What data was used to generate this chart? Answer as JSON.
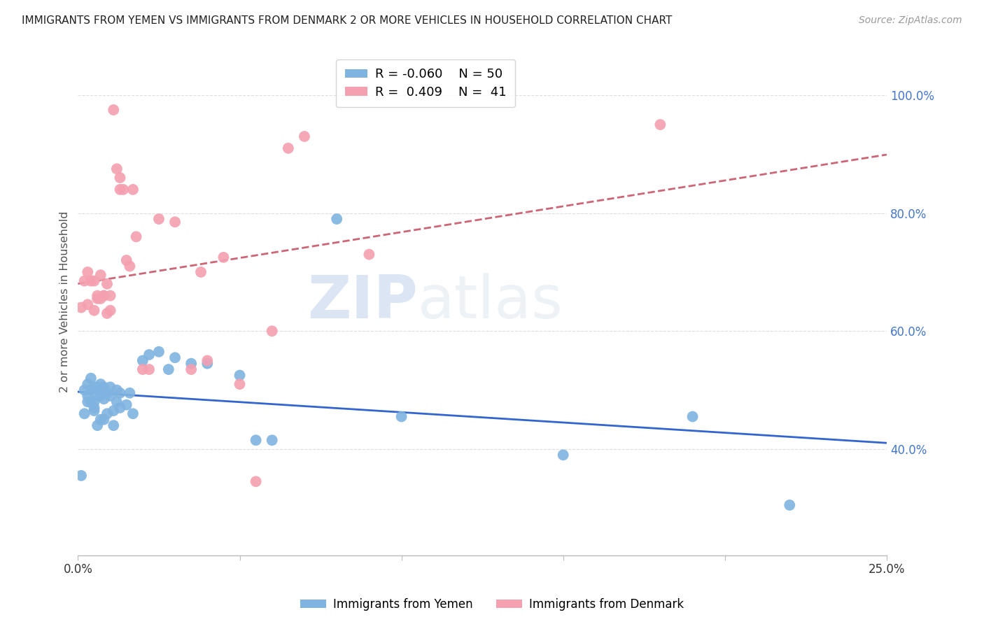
{
  "title": "IMMIGRANTS FROM YEMEN VS IMMIGRANTS FROM DENMARK 2 OR MORE VEHICLES IN HOUSEHOLD CORRELATION CHART",
  "source": "Source: ZipAtlas.com",
  "ylabel": "2 or more Vehicles in Household",
  "yemen_color": "#7fb3e0",
  "denmark_color": "#f4a0b0",
  "yemen_line_color": "#3366cc",
  "denmark_line_color": "#cc6677",
  "background_color": "#ffffff",
  "grid_color": "#dddddd",
  "watermark_zip": "ZIP",
  "watermark_atlas": "atlas",
  "legend_R_yemen": "-0.060",
  "legend_N_yemen": "50",
  "legend_R_denmark": "0.409",
  "legend_N_denmark": "41",
  "xlim": [
    0.0,
    0.25
  ],
  "ylim": [
    0.22,
    1.08
  ],
  "yticks": [
    0.4,
    0.6,
    0.8,
    1.0
  ],
  "ytick_labels": [
    "40.0%",
    "60.0%",
    "80.0%",
    "100.0%"
  ],
  "xticks": [
    0.0,
    0.05,
    0.1,
    0.15,
    0.2,
    0.25
  ],
  "xtick_labels": [
    "0.0%",
    "",
    "",
    "",
    "",
    "25.0%"
  ],
  "yemen_points_x": [
    0.001,
    0.002,
    0.002,
    0.003,
    0.003,
    0.003,
    0.004,
    0.004,
    0.004,
    0.005,
    0.005,
    0.005,
    0.005,
    0.006,
    0.006,
    0.006,
    0.007,
    0.007,
    0.007,
    0.008,
    0.008,
    0.008,
    0.009,
    0.009,
    0.01,
    0.01,
    0.011,
    0.011,
    0.012,
    0.012,
    0.013,
    0.013,
    0.015,
    0.016,
    0.017,
    0.02,
    0.022,
    0.025,
    0.028,
    0.03,
    0.035,
    0.04,
    0.05,
    0.055,
    0.06,
    0.08,
    0.1,
    0.15,
    0.19,
    0.22
  ],
  "yemen_points_y": [
    0.355,
    0.5,
    0.46,
    0.51,
    0.49,
    0.48,
    0.52,
    0.5,
    0.48,
    0.505,
    0.48,
    0.465,
    0.47,
    0.505,
    0.49,
    0.44,
    0.51,
    0.49,
    0.45,
    0.505,
    0.485,
    0.45,
    0.495,
    0.46,
    0.505,
    0.49,
    0.465,
    0.44,
    0.5,
    0.48,
    0.495,
    0.47,
    0.475,
    0.495,
    0.46,
    0.55,
    0.56,
    0.565,
    0.535,
    0.555,
    0.545,
    0.545,
    0.525,
    0.415,
    0.415,
    0.79,
    0.455,
    0.39,
    0.455,
    0.305
  ],
  "denmark_points_x": [
    0.001,
    0.002,
    0.003,
    0.003,
    0.004,
    0.005,
    0.005,
    0.006,
    0.006,
    0.007,
    0.007,
    0.008,
    0.008,
    0.009,
    0.009,
    0.01,
    0.01,
    0.011,
    0.012,
    0.013,
    0.013,
    0.014,
    0.015,
    0.016,
    0.017,
    0.018,
    0.02,
    0.022,
    0.025,
    0.03,
    0.035,
    0.038,
    0.04,
    0.045,
    0.05,
    0.055,
    0.06,
    0.065,
    0.07,
    0.09,
    0.18
  ],
  "denmark_points_y": [
    0.64,
    0.685,
    0.645,
    0.7,
    0.685,
    0.685,
    0.635,
    0.66,
    0.655,
    0.695,
    0.655,
    0.66,
    0.66,
    0.68,
    0.63,
    0.635,
    0.66,
    0.975,
    0.875,
    0.86,
    0.84,
    0.84,
    0.72,
    0.71,
    0.84,
    0.76,
    0.535,
    0.535,
    0.79,
    0.785,
    0.535,
    0.7,
    0.55,
    0.725,
    0.51,
    0.345,
    0.6,
    0.91,
    0.93,
    0.73,
    0.95
  ]
}
